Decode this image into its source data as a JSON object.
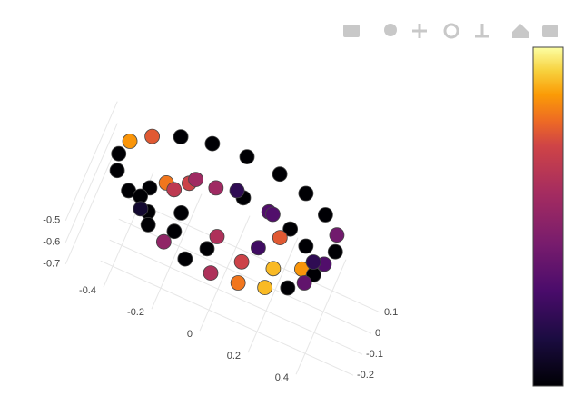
{
  "chart_data": {
    "type": "scatter3d",
    "colorscale": "Inferno",
    "marker_line_color": "#444444",
    "xticks": [
      -0.4,
      -0.2,
      0,
      0.2,
      0.4
    ],
    "yticks": [
      -0.2,
      -0.1,
      0,
      0.1
    ],
    "zticks": [
      -0.7,
      -0.6,
      -0.5
    ],
    "x": [
      0.45,
      0.43,
      0.36,
      0.26,
      0.14,
      0,
      -0.14,
      -0.26,
      -0.36,
      -0.43,
      -0.45,
      -0.43,
      -0.36,
      -0.26,
      -0.14,
      0,
      0.14,
      0.26,
      0.36,
      0.43,
      0.36,
      0.34,
      0.29,
      0.21,
      0.11,
      0,
      -0.11,
      -0.21,
      -0.29,
      -0.34,
      -0.36,
      -0.34,
      -0.29,
      -0.21,
      -0.11,
      0,
      0.11,
      0.21,
      0.29,
      0.34,
      0.22,
      0.16,
      0,
      -0.16,
      -0.22,
      -0.16,
      0,
      0.16
    ],
    "y": [
      0,
      0.07,
      0.13,
      0.18,
      0.21,
      0.22,
      0.21,
      0.18,
      0.13,
      0.07,
      0,
      -0.07,
      -0.13,
      -0.18,
      -0.21,
      -0.22,
      -0.21,
      -0.18,
      -0.13,
      -0.07,
      0,
      0.05,
      0.1,
      0.14,
      0.17,
      0.18,
      0.17,
      0.14,
      0.1,
      0.05,
      0,
      -0.05,
      -0.1,
      -0.14,
      -0.17,
      -0.18,
      -0.17,
      -0.14,
      -0.1,
      -0.05,
      0,
      0.08,
      0.11,
      0.08,
      0,
      -0.08,
      -0.11,
      -0.08
    ],
    "z": [
      -0.45,
      -0.45,
      -0.45,
      -0.45,
      -0.45,
      -0.45,
      -0.45,
      -0.45,
      -0.45,
      -0.45,
      -0.45,
      -0.45,
      -0.45,
      -0.45,
      -0.45,
      -0.45,
      -0.45,
      -0.45,
      -0.45,
      -0.45,
      -0.6,
      -0.6,
      -0.6,
      -0.6,
      -0.6,
      -0.6,
      -0.6,
      -0.6,
      -0.6,
      -0.6,
      -0.6,
      -0.6,
      -0.6,
      -0.6,
      -0.6,
      -0.6,
      -0.6,
      -0.6,
      -0.6,
      -0.6,
      -0.5,
      -0.5,
      -0.5,
      -0.5,
      -0.5,
      -0.5,
      -0.5,
      -0.5
    ],
    "color_values": [
      0,
      0.4,
      0,
      0,
      0,
      0,
      0,
      0,
      0.75,
      0.85,
      0,
      0,
      0,
      0,
      0,
      0,
      0.7,
      0.9,
      0.85,
      0.3,
      0,
      0.2,
      0,
      0,
      0.3,
      0,
      0.55,
      0.7,
      0.8,
      0,
      0,
      0.1,
      0,
      0.5,
      0,
      0.6,
      0.8,
      0.9,
      0,
      0.35,
      0.75,
      0.3,
      0.2,
      0.55,
      0.65,
      0,
      0.6,
      0.25
    ]
  }
}
